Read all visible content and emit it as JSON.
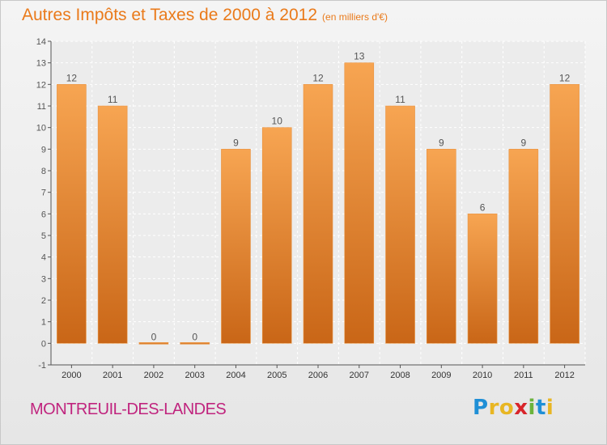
{
  "header": {
    "title": "Autres Impôts et Taxes de 2000 à 2012",
    "subtitle": "(en milliers d'€)"
  },
  "footer": {
    "place": "MONTREUIL-DES-LANDES",
    "brand_letters": [
      {
        "ch": "P",
        "color": "#1f8fd6"
      },
      {
        "ch": "r",
        "color": "#e8b623"
      },
      {
        "ch": "o",
        "color": "#e8b623"
      },
      {
        "ch": "x",
        "color": "#d8252b"
      },
      {
        "ch": "i",
        "color": "#6bb33c"
      },
      {
        "ch": "t",
        "color": "#1f8fd6"
      },
      {
        "ch": "i",
        "color": "#e8b623"
      }
    ]
  },
  "colors": {
    "bar_light": "#f7a552",
    "bar_dark": "#c96617",
    "label": "#555555",
    "axis": "#555555"
  },
  "chart_data": {
    "type": "bar",
    "categories": [
      "2000",
      "2001",
      "2002",
      "2003",
      "2004",
      "2005",
      "2006",
      "2007",
      "2008",
      "2009",
      "2010",
      "2011",
      "2012"
    ],
    "values": [
      12,
      11,
      0,
      0,
      9,
      10,
      12,
      13,
      11,
      9,
      6,
      9,
      12
    ],
    "title": "Autres Impôts et Taxes de 2000 à 2012",
    "subtitle": "(en milliers d'€)",
    "ylim": [
      -1,
      14
    ],
    "yticks": [
      -1,
      0,
      1,
      2,
      3,
      4,
      5,
      6,
      7,
      8,
      9,
      10,
      11,
      12,
      13,
      14
    ],
    "grid": true
  }
}
